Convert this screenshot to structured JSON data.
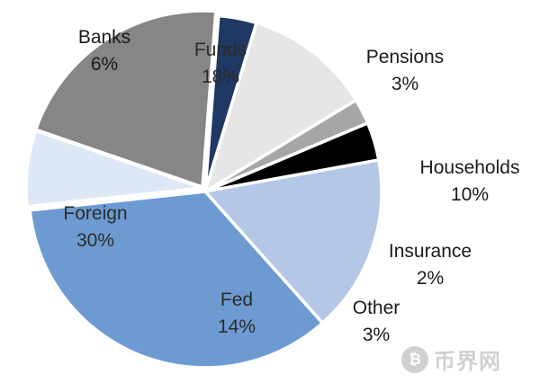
{
  "chart_data": {
    "type": "pie",
    "title": "",
    "slices": [
      {
        "label": "Funds",
        "value": 18,
        "display": "18%",
        "color": "#868686"
      },
      {
        "label": "Pensions",
        "value": 3,
        "display": "3%",
        "color": "#1f3864"
      },
      {
        "label": "Households",
        "value": 10,
        "display": "10%",
        "color": "#e6e6e6"
      },
      {
        "label": "Insurance",
        "value": 2,
        "display": "2%",
        "color": "#a6a6a6"
      },
      {
        "label": "Other",
        "value": 3,
        "display": "3%",
        "color": "#000000"
      },
      {
        "label": "Fed",
        "value": 14,
        "display": "14%",
        "color": "#b4c7e7"
      },
      {
        "label": "Foreign",
        "value": 30,
        "display": "30%",
        "color": "#6d9bd1"
      },
      {
        "label": "Banks",
        "value": 6,
        "display": "6%",
        "color": "#dde8f6"
      }
    ]
  },
  "watermark": {
    "symbol": "₿",
    "text": "币界网"
  }
}
